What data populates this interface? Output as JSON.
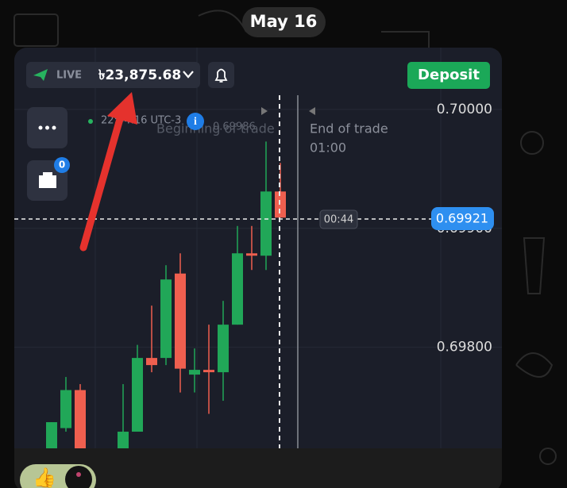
{
  "header": {
    "date": "May 16"
  },
  "toolbar": {
    "mode": "LIVE",
    "balance": "৳23,875.68",
    "deposit": "Deposit"
  },
  "sidebar": {
    "badge": "0"
  },
  "chart": {
    "time": "22:44:16 UTC-3",
    "trade_start": "Beginning of trade",
    "trade_start_price": "0.69986",
    "trade_end": "End of trade",
    "trade_duration": "01:00",
    "timer": "00:44",
    "current_price": "0.69921"
  },
  "chart_data": {
    "type": "candlestick",
    "open": [
      0.69715,
      0.69732,
      0.69764,
      null,
      null,
      0.69715,
      0.69729,
      0.69791,
      0.69791,
      0.69862,
      0.69777,
      0.69781,
      0.69779,
      0.69819,
      0.69879,
      0.69877,
      0.69931
    ],
    "high": [
      0.69737,
      0.69775,
      0.69769,
      null,
      null,
      0.69769,
      0.69802,
      0.69835,
      0.69869,
      0.69879,
      0.69799,
      0.69819,
      0.69839,
      0.69902,
      0.69902,
      0.69973,
      0.69955
    ],
    "low": [
      0.69715,
      0.69729,
      0.69715,
      null,
      null,
      0.69715,
      0.69729,
      0.69779,
      0.69785,
      0.69762,
      0.69762,
      0.69744,
      0.69755,
      0.69819,
      0.69865,
      0.69865,
      0.69909
    ],
    "close": [
      0.69737,
      0.69764,
      0.69715,
      null,
      null,
      0.69729,
      0.69791,
      0.69785,
      0.69857,
      0.69782,
      0.69781,
      0.69779,
      0.69819,
      0.69879,
      0.69877,
      0.69931,
      0.69909
    ],
    "up_color": "#21a758",
    "down_color": "#ef5f4f",
    "ylim": [
      0.69715,
      0.70052
    ],
    "yticks": [
      {
        "value": 0.7,
        "label": "0.70000"
      },
      {
        "value": 0.699,
        "label": "0.69900"
      },
      {
        "value": 0.698,
        "label": "0.69800"
      }
    ],
    "grid": true
  },
  "reactions": {
    "emoji": "👍"
  }
}
